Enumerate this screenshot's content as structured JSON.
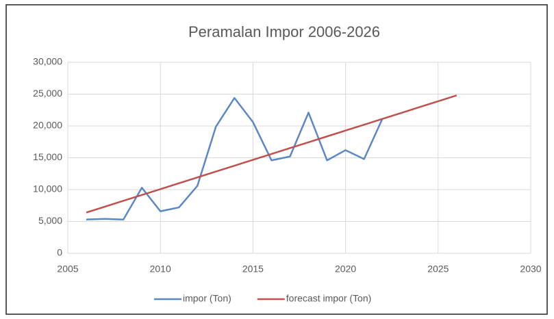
{
  "chart_data": {
    "type": "line",
    "title": "Peramalan Impor 2006-2026",
    "series": [
      {
        "name": "impor (Ton)",
        "color": "#5b87c5",
        "x": [
          2006,
          2007,
          2008,
          2009,
          2010,
          2011,
          2012,
          2013,
          2014,
          2015,
          2016,
          2017,
          2018,
          2019,
          2020,
          2021,
          2022
        ],
        "values": [
          5300,
          5400,
          5300,
          10300,
          6600,
          7200,
          10600,
          19900,
          24400,
          20600,
          14600,
          15200,
          22100,
          14600,
          16200,
          14800,
          21200
        ]
      },
      {
        "name": "forecast impor (Ton)",
        "color": "#c0504d",
        "x": [
          2006,
          2007,
          2008,
          2009,
          2010,
          2011,
          2012,
          2013,
          2014,
          2015,
          2016,
          2017,
          2018,
          2019,
          2020,
          2021,
          2022,
          2023,
          2024,
          2025,
          2026
        ],
        "values": [
          6400,
          7320,
          8240,
          9160,
          10080,
          11000,
          11920,
          12840,
          13760,
          14680,
          15600,
          16520,
          17440,
          18360,
          19280,
          20200,
          21120,
          22040,
          22960,
          23880,
          24800
        ]
      }
    ],
    "xlim": [
      2005,
      2030
    ],
    "xticks": [
      2005,
      2010,
      2015,
      2020,
      2025,
      2030
    ],
    "ylim": [
      0,
      30000
    ],
    "yticks": [
      0,
      {
        "value": 5000,
        "label": "5,000"
      },
      {
        "value": 10000,
        "label": "10,000"
      },
      {
        "value": 15000,
        "label": "15,000"
      },
      {
        "value": 20000,
        "label": "20,000"
      },
      {
        "value": 25000,
        "label": "25,000"
      },
      {
        "value": 30000,
        "label": "30,000"
      }
    ],
    "grid": true,
    "legend": "bottom"
  }
}
